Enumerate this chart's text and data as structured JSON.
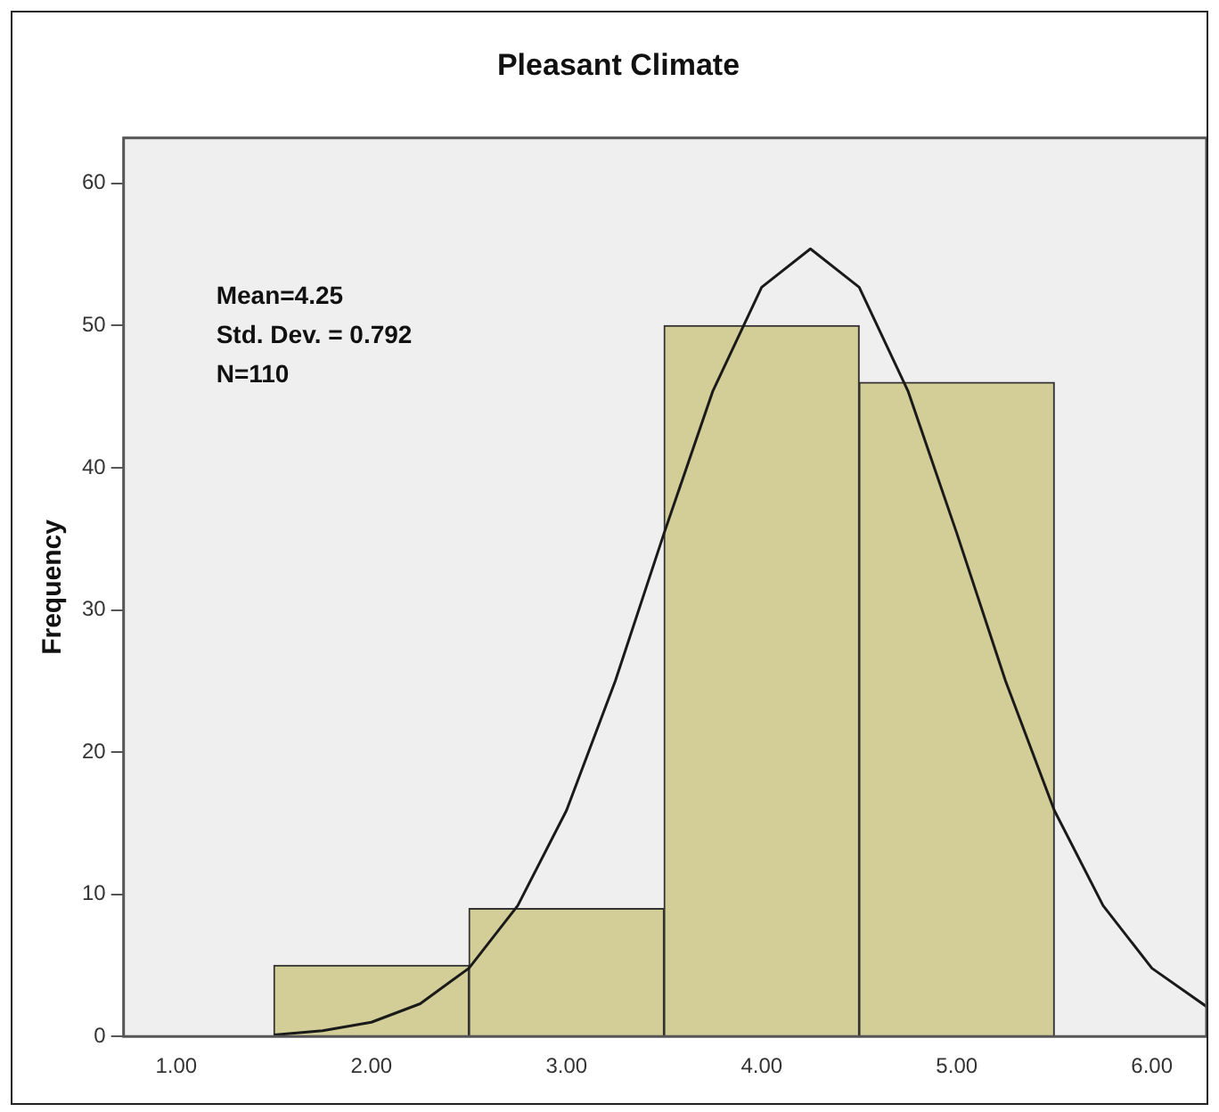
{
  "chart_data": {
    "type": "histogram",
    "title": "Pleasant Climate",
    "ylabel": "Frequency",
    "bins": [
      1.5,
      2.5,
      3.5,
      4.5,
      5.5
    ],
    "values": [
      5,
      9,
      50,
      46
    ],
    "color": "#d3cd97",
    "xlim": [
      0.73,
      6.28
    ],
    "xticks": [
      {
        "value": 1,
        "label": "1.00"
      },
      {
        "value": 2,
        "label": "2.00"
      },
      {
        "value": 3,
        "label": "3.00"
      },
      {
        "value": 4,
        "label": "4.00"
      },
      {
        "value": 5,
        "label": "5.00"
      },
      {
        "value": 6,
        "label": "6.00"
      }
    ],
    "ylim": [
      0,
      63.2
    ],
    "yticks": [
      0,
      10,
      20,
      30,
      40,
      50,
      60
    ],
    "series": [
      {
        "type": "line",
        "color": "#1a1a1a",
        "x": [
          1.5,
          1.75,
          2.0,
          2.25,
          2.5,
          2.75,
          3.0,
          3.25,
          3.5,
          3.75,
          4.0,
          4.25,
          4.5,
          4.75,
          5.0,
          5.25,
          5.5,
          5.75,
          6.0,
          6.28
        ],
        "values": [
          0.1,
          0.4,
          1.0,
          2.3,
          4.8,
          9.2,
          15.9,
          25.0,
          35.4,
          45.4,
          52.7,
          55.4,
          52.7,
          45.4,
          35.4,
          25.0,
          15.9,
          9.2,
          4.8,
          2.1
        ]
      }
    ],
    "annotations": [
      "Mean=4.25",
      "Std. Dev. = 0.792",
      "N=110"
    ],
    "grid": false,
    "legend": false,
    "marker": "none"
  }
}
